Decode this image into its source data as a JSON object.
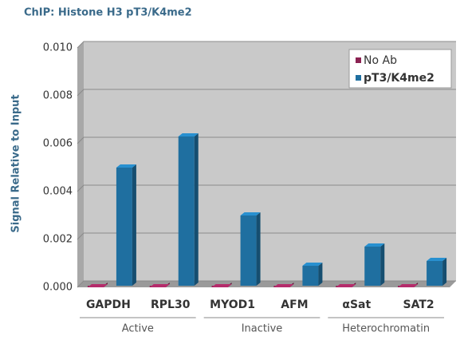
{
  "chart_data": {
    "type": "bar",
    "title": "ChIP: Histone H3 pT3/K4me2",
    "y_label": "Signal Relative to Input",
    "categories": [
      "GAPDH",
      "RPL30",
      "MYOD1",
      "AFM",
      "αSat",
      "SAT2"
    ],
    "series": [
      {
        "name": "No Ab",
        "color": "#8b2252",
        "values": [
          0,
          0,
          0,
          0,
          0,
          0
        ]
      },
      {
        "name": "pT3/K4me2",
        "color": "#1f6fa0",
        "values": [
          0.005,
          0.0063,
          0.003,
          0.0009,
          0.0017,
          0.0011
        ]
      }
    ],
    "groups": [
      {
        "label": "Active",
        "span": [
          0,
          1
        ]
      },
      {
        "label": "Inactive",
        "span": [
          2,
          3
        ]
      },
      {
        "label": "Heterochromatin",
        "span": [
          4,
          5
        ]
      }
    ],
    "ylim": [
      0,
      0.01
    ],
    "yticks": [
      {
        "value": 0,
        "label": "0.000"
      },
      {
        "value": 0.002,
        "label": "0.002"
      },
      {
        "value": 0.004,
        "label": "0.004"
      },
      {
        "value": 0.006,
        "label": "0.006"
      },
      {
        "value": 0.008,
        "label": "0.008"
      },
      {
        "value": 0.01,
        "label": "0.010"
      }
    ],
    "grid": true,
    "legend": "top-right"
  }
}
